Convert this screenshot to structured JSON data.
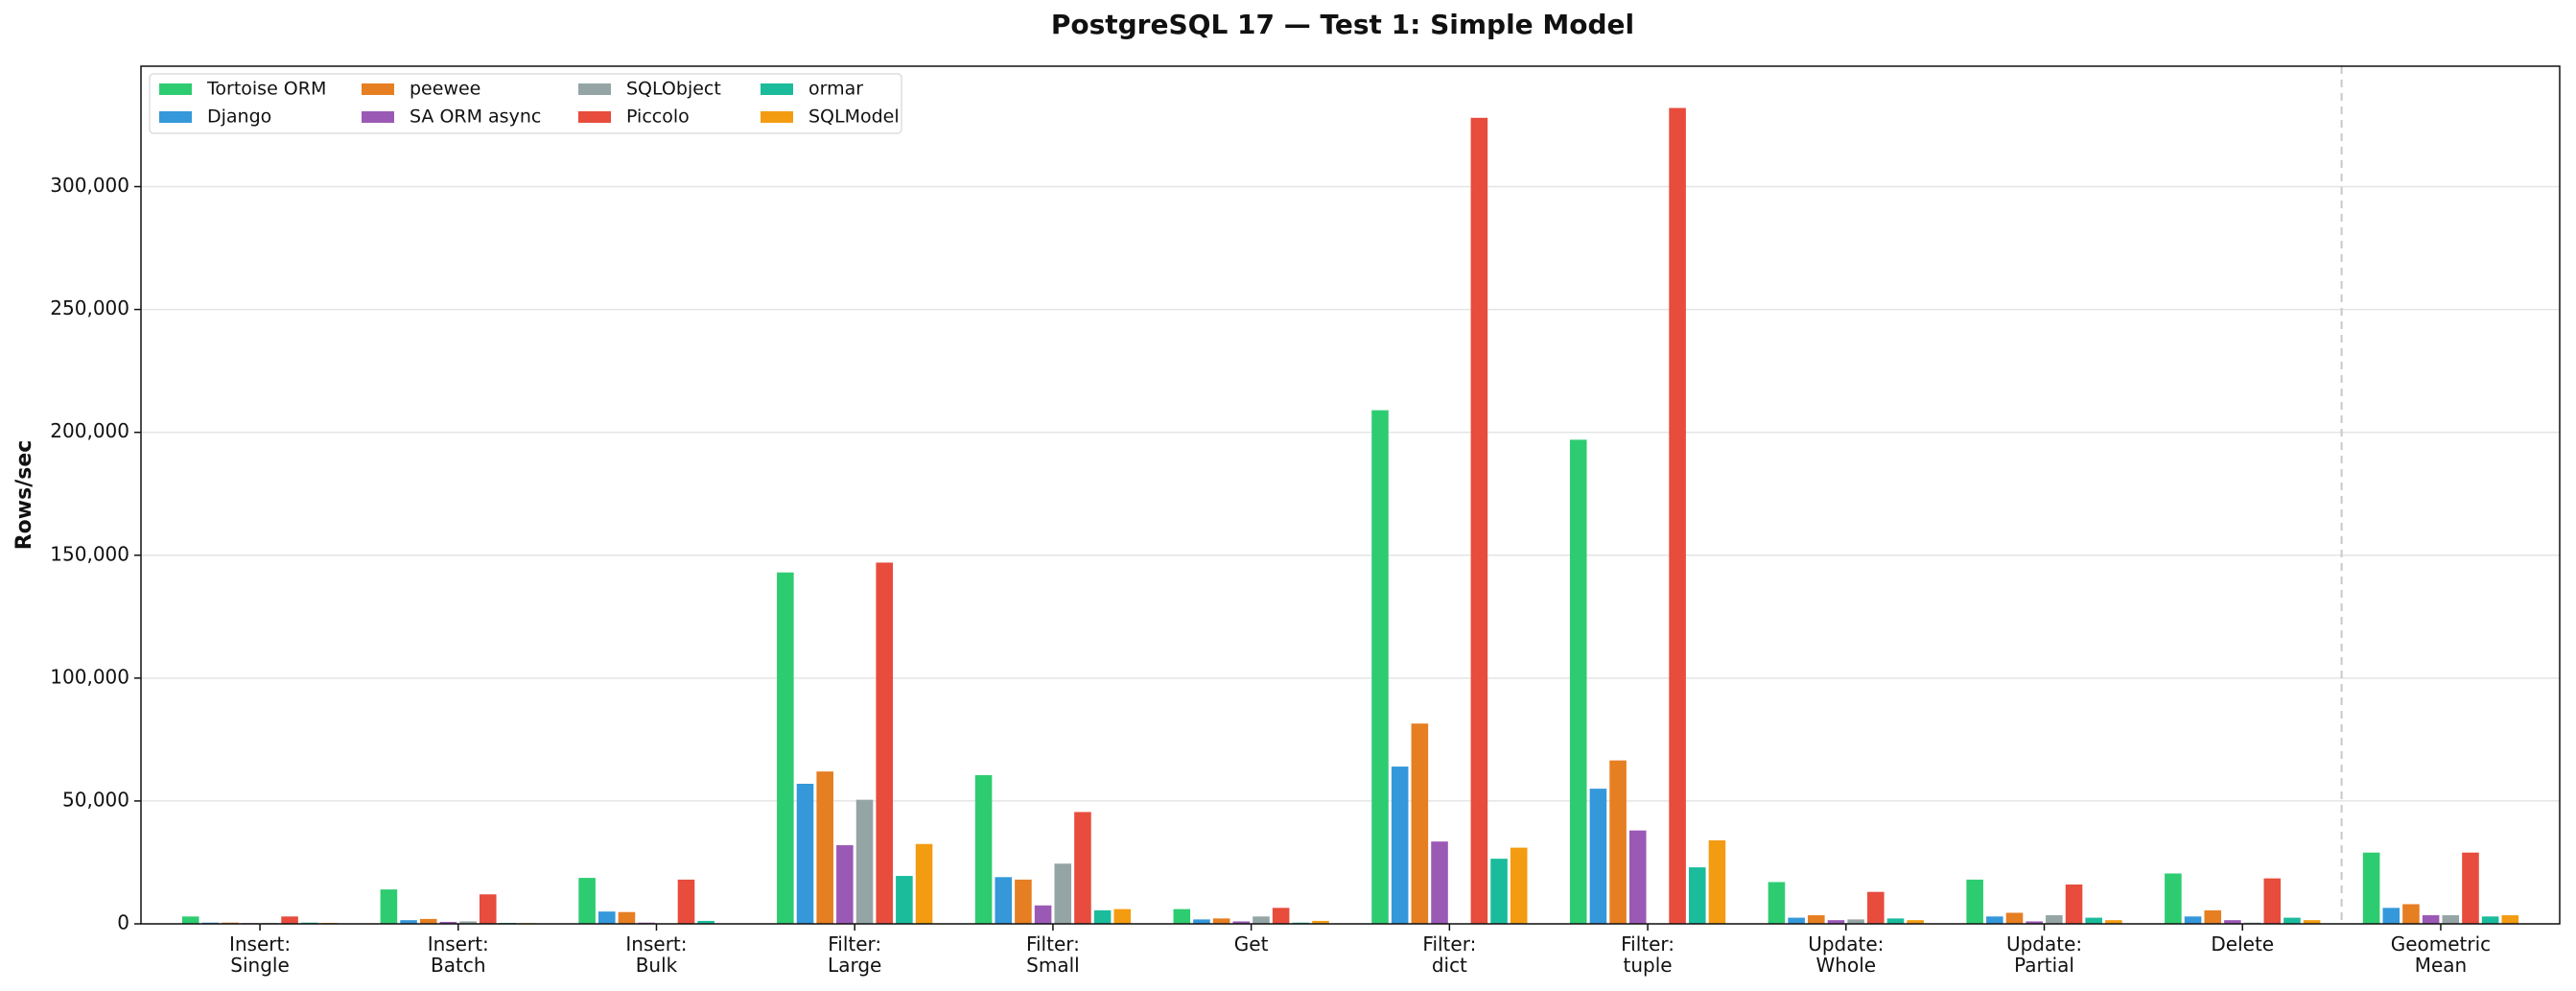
{
  "chart_data": {
    "type": "bar",
    "title": "PostgreSQL 17 — Test 1: Simple Model",
    "y_label": "Rows/sec",
    "categories": [
      [
        "Insert:",
        "Single"
      ],
      [
        "Insert:",
        "Batch"
      ],
      [
        "Insert:",
        "Bulk"
      ],
      [
        "Filter:",
        "Large"
      ],
      [
        "Filter:",
        "Small"
      ],
      [
        "Get"
      ],
      [
        "Filter:",
        "dict"
      ],
      [
        "Filter:",
        "tuple"
      ],
      [
        "Update:",
        "Whole"
      ],
      [
        "Update:",
        "Partial"
      ],
      [
        "Delete"
      ],
      [
        "Geometric",
        "Mean"
      ]
    ],
    "series": [
      {
        "name": "Tortoise ORM",
        "color": "#2ecc71",
        "values": [
          3000,
          14000,
          18700,
          143000,
          60500,
          6000,
          209000,
          197000,
          17000,
          18000,
          20500,
          29000
        ]
      },
      {
        "name": "Django",
        "color": "#3498db",
        "values": [
          500,
          1500,
          5000,
          57000,
          19000,
          1800,
          64000,
          55000,
          2500,
          3000,
          3000,
          6500
        ]
      },
      {
        "name": "peewee",
        "color": "#e67e22",
        "values": [
          500,
          2000,
          4800,
          62000,
          18000,
          2200,
          81500,
          66500,
          3500,
          4500,
          5500,
          8000
        ]
      },
      {
        "name": "SA ORM async",
        "color": "#9b59b6",
        "values": [
          300,
          800,
          500,
          32000,
          7500,
          1000,
          33500,
          38000,
          1500,
          1000,
          1500,
          3500
        ]
      },
      {
        "name": "SQLObject",
        "color": "#95a5a6",
        "values": [
          400,
          1000,
          200,
          50500,
          24500,
          3000,
          null,
          null,
          1800,
          3500,
          500,
          3500
        ]
      },
      {
        "name": "Piccolo",
        "color": "#e74c3c",
        "values": [
          3000,
          12000,
          18000,
          147000,
          45500,
          6500,
          328000,
          332000,
          13000,
          16000,
          18500,
          29000
        ]
      },
      {
        "name": "ormar",
        "color": "#1abc9c",
        "values": [
          500,
          400,
          1200,
          19500,
          5500,
          500,
          26500,
          23000,
          2200,
          2500,
          2500,
          3000
        ]
      },
      {
        "name": "SQLModel",
        "color": "#f39c12",
        "values": [
          400,
          300,
          200,
          32500,
          6000,
          1200,
          31000,
          34000,
          1500,
          1500,
          1500,
          3500
        ]
      }
    ],
    "ylim": [
      0,
      349000
    ],
    "yticks": [
      0,
      {
        "value": 50000,
        "label": "50,000"
      },
      {
        "value": 100000,
        "label": "100,000"
      },
      {
        "value": 150000,
        "label": "150,000"
      },
      {
        "value": 200000,
        "label": "200,000"
      },
      {
        "value": 250000,
        "label": "250,000"
      },
      {
        "value": 300000,
        "label": "300,000"
      }
    ],
    "grid": true,
    "legend": "upper left"
  }
}
